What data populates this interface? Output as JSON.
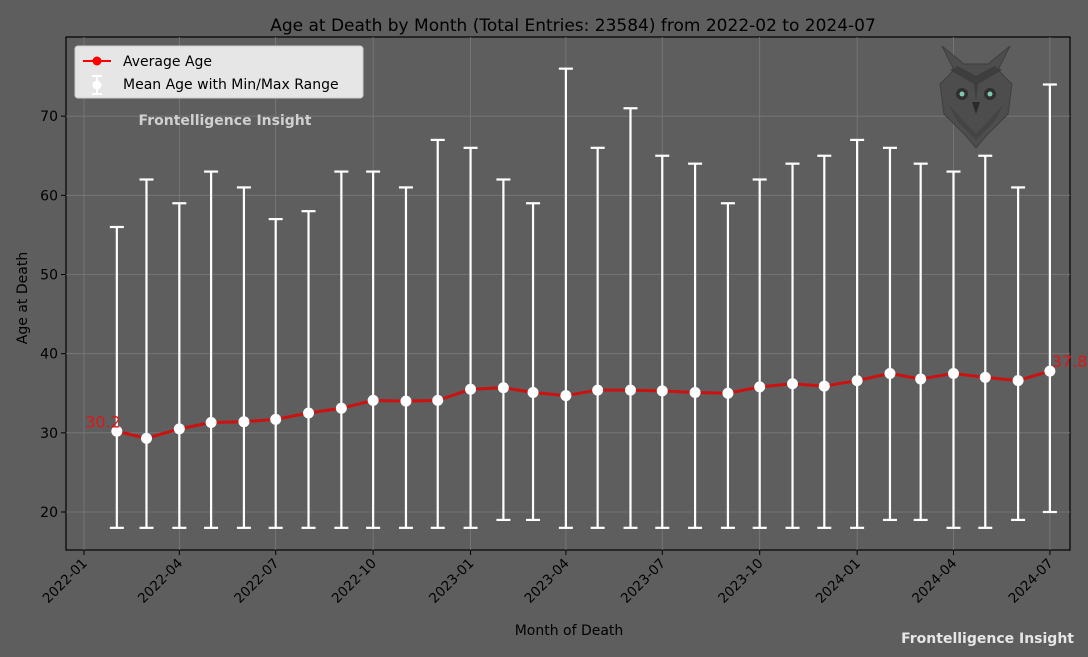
{
  "chart_data": {
    "type": "line",
    "title": "Age at Death by Month (Total Entries: 23584) from 2022-02 to 2024-07",
    "xlabel": "Month of Death",
    "ylabel": "Age at Death",
    "watermark": "Frontelligence Insight",
    "footer_brand": "Frontelligence Insight",
    "legend_placement": "upper-left",
    "grid": true,
    "colors": {
      "background": "#5e5e5e",
      "average_line": "#cc1111",
      "error_bars": "#ffffff",
      "start_end_label": "#e01515"
    },
    "xlim": [
      "2021-12-15",
      "2024-07-20"
    ],
    "ylim": [
      15.2,
      80
    ],
    "x_ticks": [
      "2022-01",
      "2022-04",
      "2022-07",
      "2022-10",
      "2023-01",
      "2023-04",
      "2023-07",
      "2023-10",
      "2024-01",
      "2024-04",
      "2024-07"
    ],
    "y_ticks": [
      20,
      30,
      40,
      50,
      60,
      70
    ],
    "x": [
      "2022-02",
      "2022-03",
      "2022-04",
      "2022-05",
      "2022-06",
      "2022-07",
      "2022-08",
      "2022-09",
      "2022-10",
      "2022-11",
      "2022-12",
      "2023-01",
      "2023-02",
      "2023-03",
      "2023-04",
      "2023-05",
      "2023-06",
      "2023-07",
      "2023-08",
      "2023-09",
      "2023-10",
      "2023-11",
      "2023-12",
      "2024-01",
      "2024-02",
      "2024-03",
      "2024-04",
      "2024-05",
      "2024-06",
      "2024-07"
    ],
    "series": [
      {
        "name": "Average Age",
        "values": [
          30.2,
          29.3,
          30.5,
          31.3,
          31.4,
          31.7,
          32.5,
          33.1,
          34.1,
          34.0,
          34.1,
          35.5,
          35.7,
          35.1,
          34.7,
          35.4,
          35.4,
          35.3,
          35.1,
          35.0,
          35.8,
          36.2,
          35.9,
          36.6,
          37.5,
          36.8,
          37.5,
          37.0,
          36.6,
          37.8
        ]
      },
      {
        "name": "Mean Age with Min/Max Range",
        "min": [
          18,
          18,
          18,
          18,
          18,
          18,
          18,
          18,
          18,
          18,
          18,
          18,
          19,
          19,
          18,
          18,
          18,
          18,
          18,
          18,
          18,
          18,
          18,
          18,
          19,
          19,
          18,
          18,
          19,
          20
        ],
        "max": [
          56,
          62,
          59,
          63,
          61,
          57,
          58,
          63,
          63,
          61,
          67,
          66,
          62,
          59,
          76,
          66,
          71,
          65,
          64,
          59,
          62,
          64,
          65,
          67,
          66,
          64,
          63,
          65,
          61,
          74
        ]
      }
    ],
    "annotations": [
      {
        "text": "30.2",
        "x": "2022-02",
        "y": 30.2
      },
      {
        "text": "37.8",
        "x": "2024-07",
        "y": 37.8
      }
    ]
  }
}
